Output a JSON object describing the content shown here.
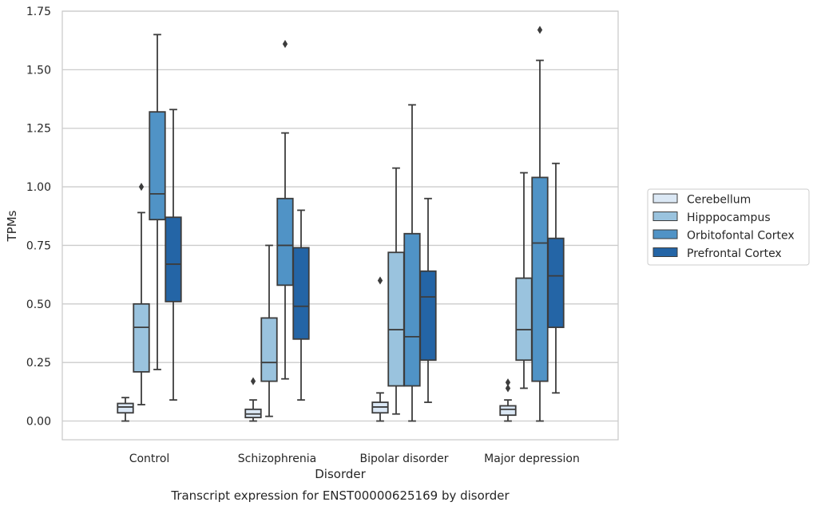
{
  "chart_data": {
    "type": "box",
    "title": "",
    "caption": "Transcript expression for ENST00000625169 by disorder",
    "xlabel": "Disorder",
    "ylabel": "TPMs",
    "ylim": [
      -0.08,
      1.75
    ],
    "yticks": [
      "0.00",
      "0.25",
      "0.50",
      "0.75",
      "1.00",
      "1.25",
      "1.50",
      "1.75"
    ],
    "grid": "horizontal",
    "legend_position": "right",
    "categories": [
      "Control",
      "Schizophrenia",
      "Bipolar disorder",
      "Major depression"
    ],
    "series": [
      {
        "name": "Cerebellum",
        "color": "#dbe8f5",
        "boxes": [
          {
            "min": 0.0,
            "q1": 0.035,
            "median": 0.06,
            "q3": 0.075,
            "max": 0.1,
            "outliers": []
          },
          {
            "min": 0.0,
            "q1": 0.015,
            "median": 0.03,
            "q3": 0.05,
            "max": 0.09,
            "outliers": [
              0.17
            ]
          },
          {
            "min": 0.0,
            "q1": 0.035,
            "median": 0.06,
            "q3": 0.08,
            "max": 0.12,
            "outliers": [
              0.6
            ]
          },
          {
            "min": 0.0,
            "q1": 0.025,
            "median": 0.05,
            "q3": 0.065,
            "max": 0.09,
            "outliers": [
              0.14,
              0.165
            ]
          }
        ]
      },
      {
        "name": "Hipppocampus",
        "color": "#9ac3de",
        "boxes": [
          {
            "min": 0.07,
            "q1": 0.21,
            "median": 0.4,
            "q3": 0.5,
            "max": 0.89,
            "outliers": [
              1.0
            ]
          },
          {
            "min": 0.02,
            "q1": 0.17,
            "median": 0.25,
            "q3": 0.44,
            "max": 0.75,
            "outliers": []
          },
          {
            "min": 0.03,
            "q1": 0.15,
            "median": 0.39,
            "q3": 0.72,
            "max": 1.08,
            "outliers": []
          },
          {
            "min": 0.14,
            "q1": 0.26,
            "median": 0.39,
            "q3": 0.61,
            "max": 1.06,
            "outliers": []
          }
        ]
      },
      {
        "name": "Orbitofontal Cortex",
        "color": "#5093c6",
        "boxes": [
          {
            "min": 0.22,
            "q1": 0.86,
            "median": 0.97,
            "q3": 1.32,
            "max": 1.65,
            "outliers": []
          },
          {
            "min": 0.18,
            "q1": 0.58,
            "median": 0.75,
            "q3": 0.95,
            "max": 1.23,
            "outliers": [
              1.61
            ]
          },
          {
            "min": 0.0,
            "q1": 0.15,
            "median": 0.36,
            "q3": 0.8,
            "max": 1.35,
            "outliers": []
          },
          {
            "min": 0.0,
            "q1": 0.17,
            "median": 0.76,
            "q3": 1.04,
            "max": 1.54,
            "outliers": [
              1.67
            ]
          }
        ]
      },
      {
        "name": "Prefrontal Cortex",
        "color": "#2465a6",
        "boxes": [
          {
            "min": 0.09,
            "q1": 0.51,
            "median": 0.67,
            "q3": 0.87,
            "max": 1.33,
            "outliers": []
          },
          {
            "min": 0.09,
            "q1": 0.35,
            "median": 0.49,
            "q3": 0.74,
            "max": 0.9,
            "outliers": []
          },
          {
            "min": 0.08,
            "q1": 0.26,
            "median": 0.53,
            "q3": 0.64,
            "max": 0.95,
            "outliers": []
          },
          {
            "min": 0.12,
            "q1": 0.4,
            "median": 0.62,
            "q3": 0.78,
            "max": 1.1,
            "outliers": []
          }
        ]
      }
    ]
  }
}
